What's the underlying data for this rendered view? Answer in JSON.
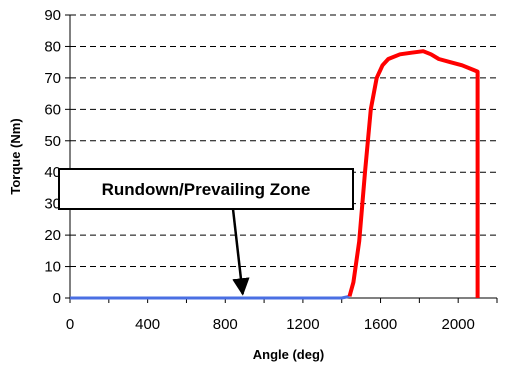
{
  "chart_data": {
    "type": "line",
    "title": "",
    "xlabel": "Angle (deg)",
    "ylabel": "Torque (Nm)",
    "xlim": [
      0,
      2200
    ],
    "ylim": [
      0,
      90
    ],
    "x_ticks": [
      0,
      400,
      800,
      1200,
      1600,
      2000
    ],
    "x_tick_labels": [
      "0",
      "400",
      "800",
      "1200",
      "1600",
      "2000"
    ],
    "y_ticks": [
      0,
      10,
      20,
      30,
      40,
      50,
      60,
      70,
      80,
      90
    ],
    "y_tick_labels": [
      "0",
      "10",
      "20",
      "30",
      "40",
      "50",
      "60",
      "70",
      "80",
      "90"
    ],
    "grid": "horizontal dashed",
    "legend": "none",
    "series": [
      {
        "color": "#4a6fe3",
        "x": [
          0,
          1400,
          1440
        ],
        "y": [
          0,
          0,
          0.5
        ]
      },
      {
        "color": "#ff0000",
        "x": [
          1440,
          1460,
          1490,
          1520,
          1550,
          1580,
          1610,
          1640,
          1700,
          1760,
          1820,
          1860,
          1900,
          1960,
          2020,
          2080,
          2100,
          2100
        ],
        "y": [
          0.5,
          5,
          18,
          40,
          60,
          70,
          74,
          76,
          77.5,
          78,
          78.5,
          77.5,
          76,
          75,
          74,
          72.5,
          72,
          0
        ]
      }
    ],
    "annotations": [
      {
        "text": "Rundown/Prevailing Zone",
        "arrow_to": [
          900,
          0
        ]
      }
    ]
  }
}
